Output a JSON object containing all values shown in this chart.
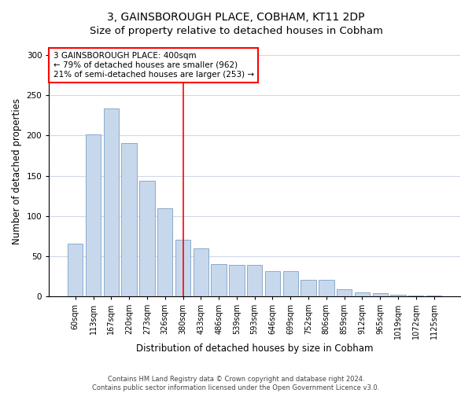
{
  "title": "3, GAINSBOROUGH PLACE, COBHAM, KT11 2DP",
  "subtitle": "Size of property relative to detached houses in Cobham",
  "xlabel": "Distribution of detached houses by size in Cobham",
  "ylabel": "Number of detached properties",
  "bar_labels": [
    "60sqm",
    "113sqm",
    "167sqm",
    "220sqm",
    "273sqm",
    "326sqm",
    "380sqm",
    "433sqm",
    "486sqm",
    "539sqm",
    "593sqm",
    "646sqm",
    "699sqm",
    "752sqm",
    "806sqm",
    "859sqm",
    "912sqm",
    "965sqm",
    "1019sqm",
    "1072sqm",
    "1125sqm"
  ],
  "bar_values": [
    65,
    201,
    234,
    191,
    144,
    109,
    70,
    60,
    40,
    39,
    39,
    31,
    31,
    20,
    20,
    9,
    5,
    4,
    2,
    1,
    1
  ],
  "bar_color": "#c8d8ec",
  "bar_edge_color": "#88aacb",
  "vline_x_index": 6,
  "vline_color": "red",
  "annotation_text": "3 GAINSBOROUGH PLACE: 400sqm\n← 79% of detached houses are smaller (962)\n21% of semi-detached houses are larger (253) →",
  "annotation_box_color": "white",
  "annotation_box_edge_color": "red",
  "ylim": [
    0,
    310
  ],
  "yticks": [
    0,
    50,
    100,
    150,
    200,
    250,
    300
  ],
  "footer_line1": "Contains HM Land Registry data © Crown copyright and database right 2024.",
  "footer_line2": "Contains public sector information licensed under the Open Government Licence v3.0.",
  "bg_color": "#ffffff",
  "title_fontsize": 10,
  "subtitle_fontsize": 9.5,
  "tick_fontsize": 7,
  "label_fontsize": 8.5
}
